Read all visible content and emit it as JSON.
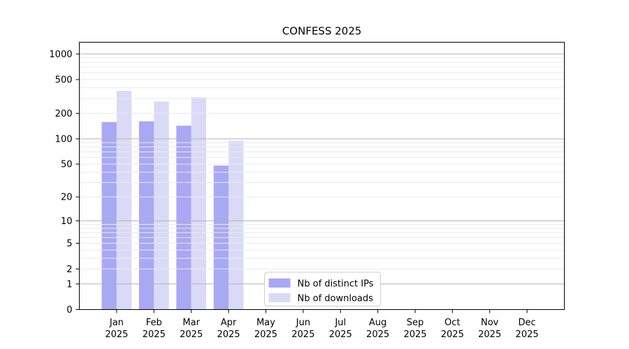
{
  "page": {
    "background": "#ffffff"
  },
  "chart_data": {
    "type": "bar",
    "title": "CONFESS 2025",
    "categories": [
      "Jan",
      "Feb",
      "Mar",
      "Apr",
      "May",
      "Jun",
      "Jul",
      "Aug",
      "Sep",
      "Oct",
      "Nov",
      "Dec"
    ],
    "category_sublabel": "2025",
    "series": [
      {
        "key": "distinct-ips",
        "name": "Nb of distinct IPs",
        "color": "#a8a8f4",
        "values": [
          158,
          161,
          143,
          48,
          0,
          0,
          0,
          0,
          0,
          0,
          0,
          0
        ]
      },
      {
        "key": "downloads",
        "name": "Nb of downloads",
        "color": "#dadaf8",
        "values": [
          369,
          276,
          309,
          95,
          0,
          0,
          0,
          0,
          0,
          0,
          0,
          0
        ]
      }
    ],
    "y_axis": {
      "scale": "log10(1+x)",
      "ticks": [
        0,
        1,
        2,
        5,
        10,
        20,
        50,
        100,
        200,
        500,
        1000
      ],
      "major_gridlines": [
        1,
        10,
        100,
        1000
      ],
      "minor_gridline_decades": [
        1,
        10,
        100
      ]
    },
    "x_axis": {
      "tick_label_lines": 2
    },
    "legend": {
      "position": "bottom-center"
    },
    "grid": {
      "visible": true
    },
    "colors": {
      "grid_major": "#b3b3b3",
      "grid_minor": "#eaeaea",
      "axis": "#000000",
      "text": "#000000",
      "legend_border": "#cccccc",
      "legend_background": "#ffffff"
    }
  }
}
